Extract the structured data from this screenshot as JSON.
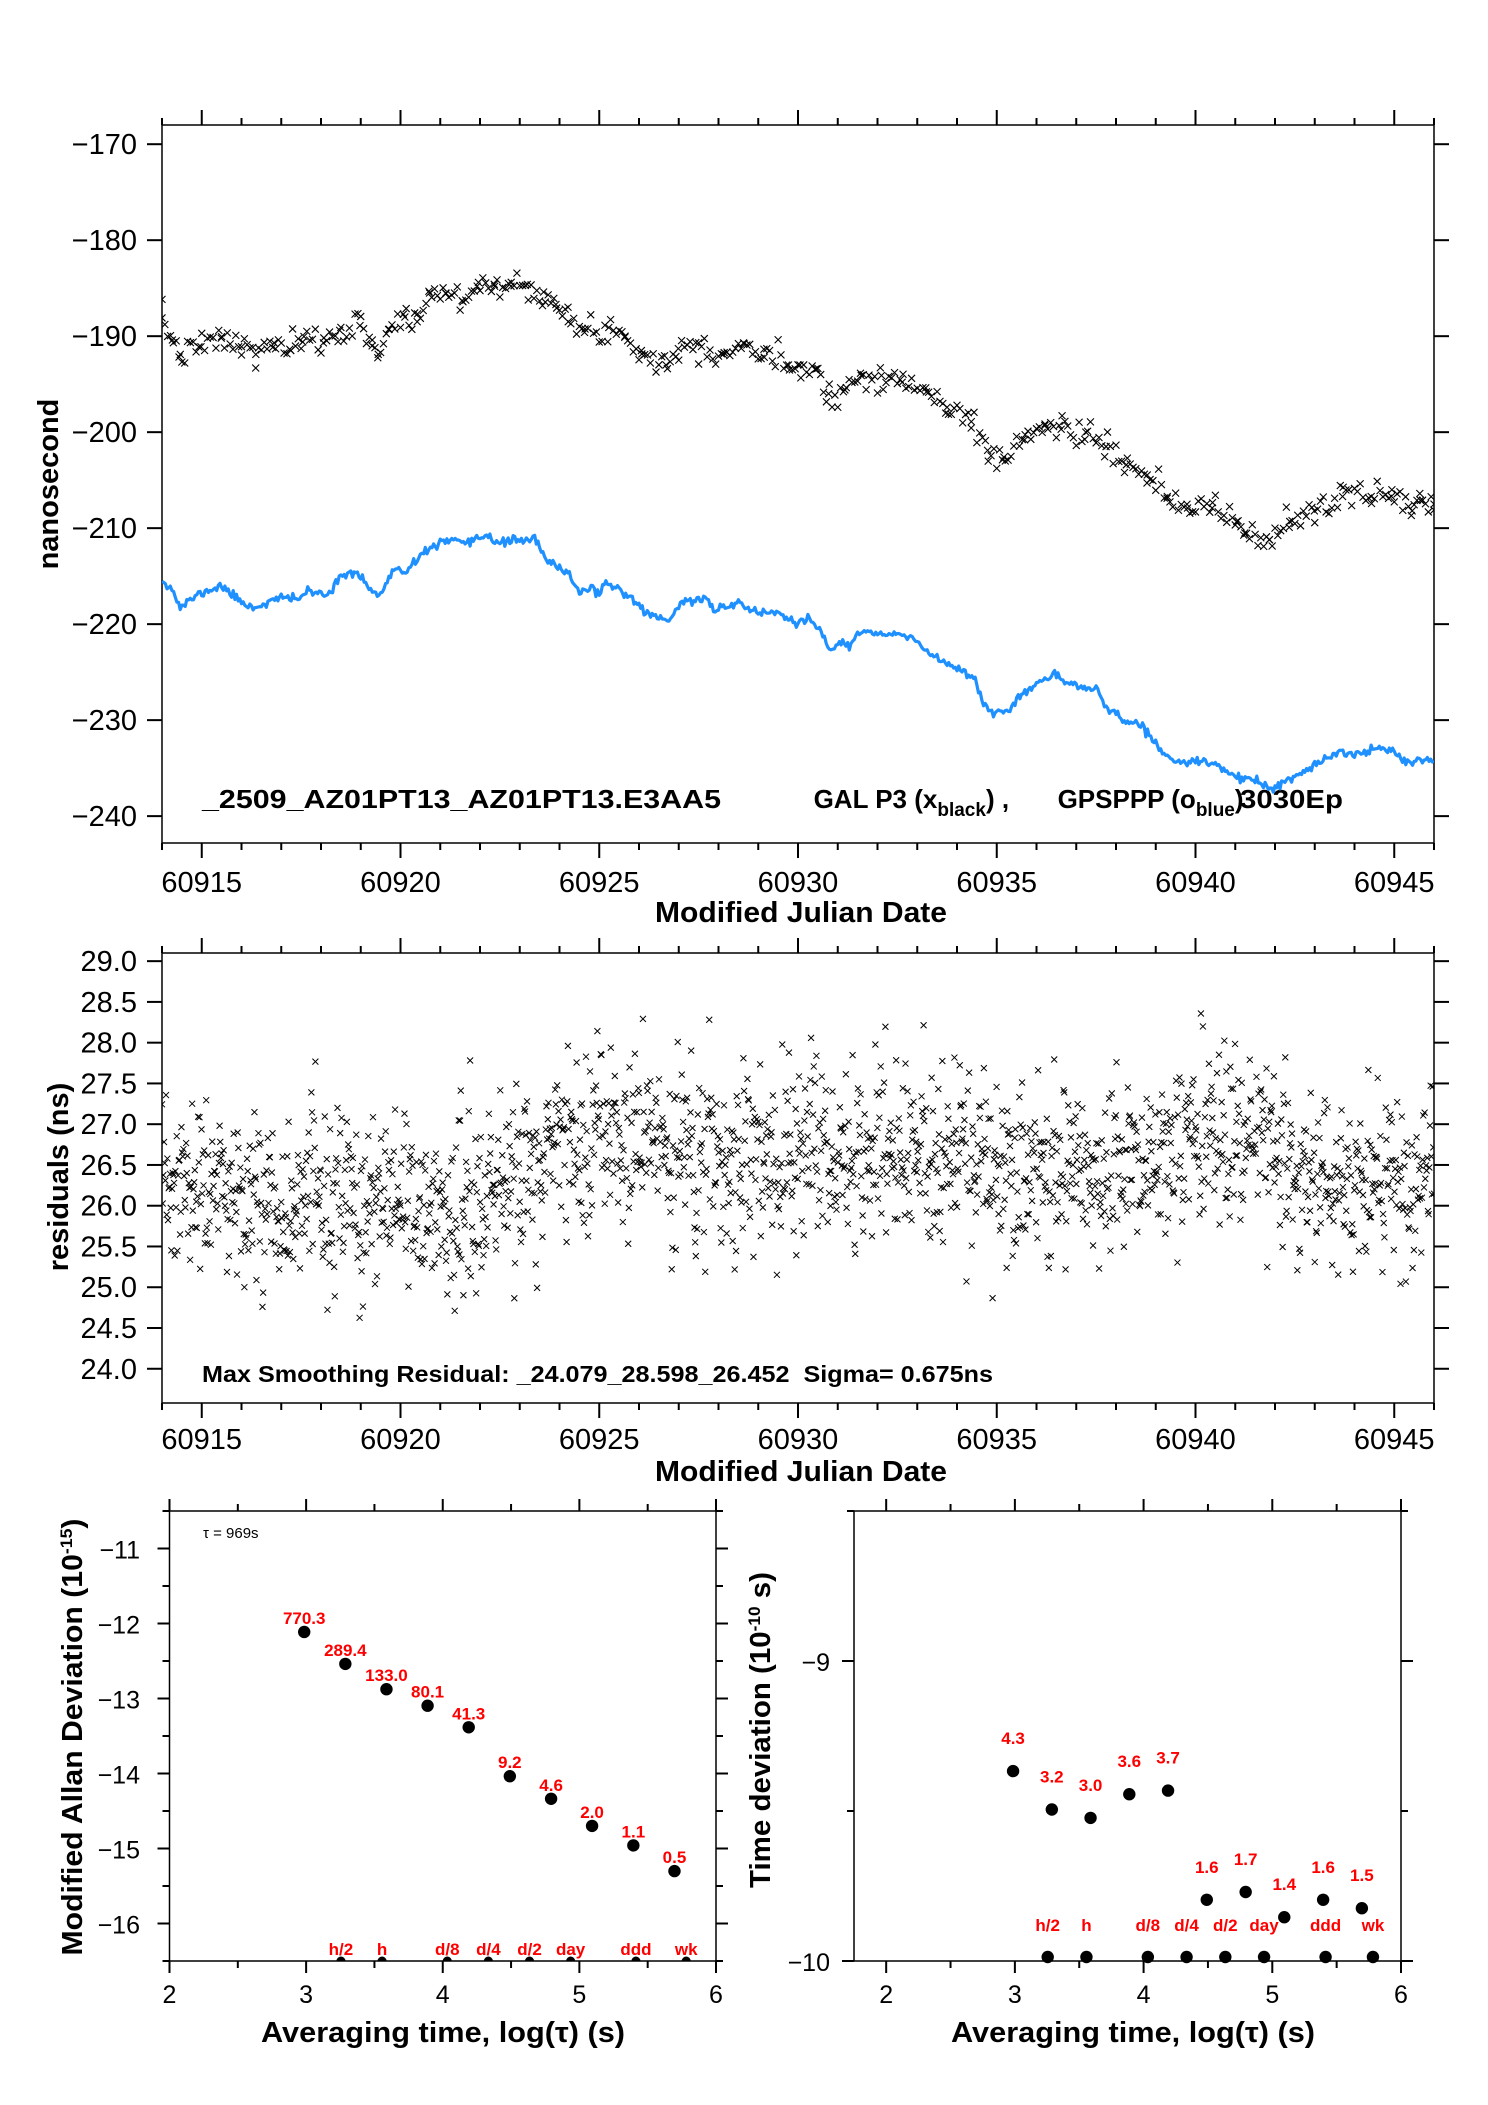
{
  "chart_data": [
    {
      "id": "clock-offset",
      "type": "scatter+line",
      "xlabel": "Modified Julian Date",
      "ylabel": "nanosecond",
      "xlim": [
        60914,
        60946
      ],
      "ylim": [
        -242.8,
        -168
      ],
      "grid": false,
      "xticks": [
        60915,
        60920,
        60925,
        60930,
        60935,
        60940,
        60945
      ],
      "xtick_labels": [
        "60915",
        "60920",
        "60925",
        "60930",
        "60935",
        "60940",
        "60945"
      ],
      "yticks": [
        -170,
        -180,
        -190,
        -200,
        -210,
        -220,
        -230,
        -240
      ],
      "ytick_labels": [
        "−170",
        "−180",
        "−190",
        "−200",
        "−210",
        "−220",
        "−230",
        "−240"
      ],
      "caption": {
        "prefix": "_2509_AZ01PT13_AZ01PT13.E3AA5",
        "series1_text": "GAL P3 (x",
        "series1_sub": "black",
        "series1_close": ") ,",
        "series2_text": "GPSPPP (o",
        "series2_sub": "blue",
        "series2_close": ")",
        "suffix": "3030Ep"
      },
      "series": [
        {
          "name": "GAL P3",
          "color": "#000000",
          "marker": "x",
          "points": [
            [
              60914.0,
              -188.1
            ],
            [
              60914.26,
              -190.4
            ],
            [
              60914.46,
              -191.9
            ],
            [
              60914.98,
              -191.1
            ],
            [
              60915.49,
              -190.2
            ],
            [
              60916.0,
              -191.1
            ],
            [
              60916.36,
              -191.9
            ],
            [
              60916.82,
              -190.7
            ],
            [
              60917.24,
              -191.5
            ],
            [
              60917.54,
              -190.6
            ],
            [
              60918.06,
              -190.7
            ],
            [
              60918.47,
              -189.4
            ],
            [
              60918.98,
              -188.9
            ],
            [
              60919.29,
              -190.4
            ],
            [
              60919.44,
              -191.9
            ],
            [
              60919.7,
              -189.3
            ],
            [
              60920.11,
              -188.0
            ],
            [
              60920.42,
              -188.5
            ],
            [
              60920.73,
              -185.5
            ],
            [
              60921.14,
              -185.5
            ],
            [
              60921.55,
              -186.3
            ],
            [
              60921.96,
              -184.4
            ],
            [
              60922.37,
              -184.8
            ],
            [
              60922.78,
              -184.8
            ],
            [
              60923.19,
              -184.6
            ],
            [
              60923.6,
              -185.4
            ],
            [
              60923.91,
              -186.7
            ],
            [
              60924.22,
              -188.5
            ],
            [
              60924.63,
              -189.6
            ],
            [
              60925.24,
              -189.1
            ],
            [
              60925.65,
              -190.0
            ],
            [
              60926.06,
              -191.5
            ],
            [
              60926.68,
              -193.0
            ],
            [
              60926.99,
              -191.3
            ],
            [
              60927.5,
              -190.7
            ],
            [
              60928.12,
              -191.9
            ],
            [
              60928.63,
              -190.7
            ],
            [
              60929.15,
              -192.2
            ],
            [
              60929.76,
              -193.0
            ],
            [
              60930.05,
              -193.0
            ],
            [
              60930.46,
              -193.4
            ],
            [
              60930.77,
              -196.0
            ],
            [
              60931.18,
              -195.6
            ],
            [
              60931.59,
              -194.1
            ],
            [
              60932.1,
              -194.1
            ],
            [
              60932.62,
              -194.8
            ],
            [
              60933.23,
              -195.8
            ],
            [
              60933.75,
              -197.4
            ],
            [
              60934.36,
              -198.9
            ],
            [
              60934.77,
              -201.9
            ],
            [
              60935.18,
              -202.6
            ],
            [
              60935.7,
              -200.8
            ],
            [
              60936.21,
              -199.3
            ],
            [
              60936.62,
              -199.7
            ],
            [
              60937.24,
              -200.0
            ],
            [
              60937.75,
              -201.5
            ],
            [
              60938.26,
              -203.4
            ],
            [
              60938.78,
              -205.3
            ],
            [
              60939.29,
              -206.7
            ],
            [
              60939.8,
              -207.9
            ],
            [
              60940.42,
              -207.9
            ],
            [
              60941.04,
              -209.3
            ],
            [
              60941.24,
              -210.5
            ],
            [
              60941.86,
              -211.2
            ],
            [
              60942.37,
              -209.3
            ],
            [
              60942.99,
              -208.2
            ],
            [
              60943.7,
              -206.7
            ],
            [
              60944.42,
              -206.7
            ],
            [
              60944.94,
              -206.0
            ],
            [
              60945.45,
              -208.2
            ],
            [
              60945.66,
              -207.1
            ],
            [
              60946.0,
              -207.5
            ]
          ]
        },
        {
          "name": "GPSPPP",
          "color": "#1e90ff",
          "marker": "o",
          "points": [
            [
              60914.0,
              -215.3
            ],
            [
              60914.26,
              -216.4
            ],
            [
              60914.46,
              -218.3
            ],
            [
              60914.87,
              -217.0
            ],
            [
              60915.49,
              -216.0
            ],
            [
              60916.0,
              -217.7
            ],
            [
              60916.31,
              -218.3
            ],
            [
              60916.93,
              -217.3
            ],
            [
              60917.44,
              -217.3
            ],
            [
              60917.65,
              -216.6
            ],
            [
              60918.16,
              -217.0
            ],
            [
              60918.47,
              -214.9
            ],
            [
              60918.98,
              -214.9
            ],
            [
              60919.44,
              -217.2
            ],
            [
              60919.9,
              -214.0
            ],
            [
              60920.11,
              -214.9
            ],
            [
              60920.62,
              -212.3
            ],
            [
              60921.24,
              -211.2
            ],
            [
              60921.65,
              -211.8
            ],
            [
              60922.16,
              -210.6
            ],
            [
              60922.47,
              -211.6
            ],
            [
              60922.88,
              -211.2
            ],
            [
              60923.4,
              -211.2
            ],
            [
              60923.7,
              -213.6
            ],
            [
              60924.22,
              -214.6
            ],
            [
              60924.53,
              -216.8
            ],
            [
              60924.83,
              -216.0
            ],
            [
              60924.99,
              -217.0
            ],
            [
              60925.24,
              -215.7
            ],
            [
              60925.65,
              -216.8
            ],
            [
              60926.27,
              -219.0
            ],
            [
              60926.73,
              -219.6
            ],
            [
              60927.09,
              -217.7
            ],
            [
              60927.71,
              -217.3
            ],
            [
              60927.91,
              -218.6
            ],
            [
              60928.53,
              -217.7
            ],
            [
              60929.04,
              -219.0
            ],
            [
              60929.35,
              -218.6
            ],
            [
              60929.97,
              -219.9
            ],
            [
              60930.25,
              -219.4
            ],
            [
              60930.56,
              -220.9
            ],
            [
              60930.82,
              -222.9
            ],
            [
              60931.08,
              -221.6
            ],
            [
              60931.28,
              -222.4
            ],
            [
              60931.59,
              -220.7
            ],
            [
              60932.1,
              -221.1
            ],
            [
              60932.62,
              -221.1
            ],
            [
              60933.03,
              -222.0
            ],
            [
              60933.54,
              -223.7
            ],
            [
              60934.05,
              -224.6
            ],
            [
              60934.46,
              -225.7
            ],
            [
              60934.67,
              -228.3
            ],
            [
              60934.98,
              -229.4
            ],
            [
              60935.39,
              -228.7
            ],
            [
              60935.8,
              -226.8
            ],
            [
              60936.31,
              -225.3
            ],
            [
              60936.72,
              -226.1
            ],
            [
              60937.24,
              -226.6
            ],
            [
              60937.54,
              -226.8
            ],
            [
              60937.75,
              -228.7
            ],
            [
              60938.26,
              -230.2
            ],
            [
              60938.67,
              -230.5
            ],
            [
              60939.08,
              -233.0
            ],
            [
              60939.6,
              -234.6
            ],
            [
              60940.0,
              -234.3
            ],
            [
              60940.52,
              -234.6
            ],
            [
              60941.14,
              -236.1
            ],
            [
              60941.55,
              -236.5
            ],
            [
              60941.96,
              -237.2
            ],
            [
              60942.37,
              -236.1
            ],
            [
              60942.78,
              -235.4
            ],
            [
              60943.19,
              -234.3
            ],
            [
              60943.6,
              -233.3
            ],
            [
              60944.22,
              -233.5
            ],
            [
              60944.63,
              -232.8
            ],
            [
              60945.04,
              -233.2
            ],
            [
              60945.35,
              -234.5
            ],
            [
              60945.66,
              -234.0
            ],
            [
              60946.0,
              -234.2
            ]
          ]
        }
      ]
    },
    {
      "id": "residuals",
      "type": "scatter",
      "xlabel": "Modified Julian Date",
      "ylabel": "residuals (ns)",
      "xlim": [
        60914,
        60946
      ],
      "ylim": [
        23.58,
        29.1
      ],
      "grid": false,
      "xticks": [
        60915,
        60920,
        60925,
        60930,
        60935,
        60940,
        60945
      ],
      "xtick_labels": [
        "60915",
        "60920",
        "60925",
        "60930",
        "60935",
        "60940",
        "60945"
      ],
      "yticks": [
        29.0,
        28.5,
        28.0,
        27.5,
        27.0,
        26.5,
        26.0,
        25.5,
        25.0,
        24.5,
        24.0
      ],
      "ytick_labels": [
        "29.0",
        "28.5",
        "28.0",
        "27.5",
        "27.0",
        "26.5",
        "26.0",
        "25.5",
        "25.0",
        "24.5",
        "24.0"
      ],
      "annotation": "Max Smoothing Residual: _24.079_28.598_26.452  Sigma= 0.675ns",
      "stats": {
        "min": 24.079,
        "max": 28.598,
        "mean": 26.452,
        "sigma": 0.675
      },
      "trend": [
        [
          60914,
          26.2
        ],
        [
          60917,
          26.1
        ],
        [
          60920,
          25.9
        ],
        [
          60922,
          26.0
        ],
        [
          60924,
          26.7
        ],
        [
          60926,
          26.8
        ],
        [
          60928,
          26.5
        ],
        [
          60930,
          26.6
        ],
        [
          60932,
          26.7
        ],
        [
          60934,
          26.6
        ],
        [
          60936,
          26.3
        ],
        [
          60938,
          26.4
        ],
        [
          60940,
          26.8
        ],
        [
          60942,
          26.6
        ],
        [
          60944,
          26.3
        ],
        [
          60946,
          26.4
        ]
      ],
      "marker": "x",
      "color": "#000000"
    },
    {
      "id": "mod-allan-deviation",
      "type": "scatter",
      "xlabel": "Averaging time, log(τ) (s)",
      "ylabel_main": "Modified Allan Deviation (10",
      "ylabel_sup": "-15",
      "ylabel_close": ")",
      "xlim": [
        2,
        6
      ],
      "ylim": [
        -16.5,
        -10.5
      ],
      "xticks": [
        2,
        3,
        4,
        5,
        6
      ],
      "xtick_labels": [
        "2",
        "3",
        "4",
        "5",
        "6"
      ],
      "yticks": [
        -11,
        -12,
        -13,
        -14,
        -15,
        -16
      ],
      "ytick_labels": [
        "−11",
        "−12",
        "−13",
        "−14",
        "−15",
        "−16"
      ],
      "tau_label": "τ = 969s",
      "points": [
        {
          "x": 2.986,
          "y": -12.113,
          "label": "770.3"
        },
        {
          "x": 3.287,
          "y": -12.539,
          "label": "289.4"
        },
        {
          "x": 3.588,
          "y": -12.876,
          "label": "133.0"
        },
        {
          "x": 3.889,
          "y": -13.096,
          "label": "80.1"
        },
        {
          "x": 4.19,
          "y": -13.384,
          "label": "41.3"
        },
        {
          "x": 4.491,
          "y": -14.036,
          "label": "9.2"
        },
        {
          "x": 4.793,
          "y": -14.337,
          "label": "4.6"
        },
        {
          "x": 5.093,
          "y": -14.699,
          "label": "2.0"
        },
        {
          "x": 5.395,
          "y": -14.959,
          "label": "1.1"
        },
        {
          "x": 5.696,
          "y": -15.301,
          "label": "0.5"
        }
      ],
      "time_markers": [
        {
          "x": 3.255,
          "label": "h/2"
        },
        {
          "x": 3.556,
          "label": "h"
        },
        {
          "x": 4.033,
          "label": "d/8"
        },
        {
          "x": 4.334,
          "label": "d/4"
        },
        {
          "x": 4.635,
          "label": "d/2"
        },
        {
          "x": 4.936,
          "label": "day"
        },
        {
          "x": 5.414,
          "label": "ddd"
        },
        {
          "x": 5.782,
          "label": "wk"
        }
      ],
      "point_color": "#000000",
      "label_color": "#ff0000"
    },
    {
      "id": "time-deviation",
      "type": "scatter",
      "xlabel": "Averaging time, log(τ) (s)",
      "ylabel_main": "Time deviation (10",
      "ylabel_sup": "-10",
      "ylabel_close": " s)",
      "xlim": [
        1.75,
        6.0
      ],
      "ylim": [
        -10,
        -8.5
      ],
      "xticks": [
        2,
        3,
        4,
        5,
        6
      ],
      "xtick_labels": [
        "2",
        "3",
        "4",
        "5",
        "6"
      ],
      "yticks": [
        -9,
        -10
      ],
      "ytick_labels": [
        "−9",
        "−10"
      ],
      "points": [
        {
          "x": 2.986,
          "y": -9.367,
          "label": "4.3"
        },
        {
          "x": 3.287,
          "y": -9.495,
          "label": "3.2"
        },
        {
          "x": 3.588,
          "y": -9.523,
          "label": "3.0"
        },
        {
          "x": 3.889,
          "y": -9.444,
          "label": "3.6"
        },
        {
          "x": 4.19,
          "y": -9.432,
          "label": "3.7"
        },
        {
          "x": 4.491,
          "y": -9.796,
          "label": "1.6"
        },
        {
          "x": 4.793,
          "y": -9.77,
          "label": "1.7"
        },
        {
          "x": 5.093,
          "y": -9.854,
          "label": "1.4"
        },
        {
          "x": 5.395,
          "y": -9.796,
          "label": "1.6"
        },
        {
          "x": 5.696,
          "y": -9.824,
          "label": "1.5"
        }
      ],
      "time_markers": [
        {
          "x": 3.255,
          "label": "h/2"
        },
        {
          "x": 3.556,
          "label": "h"
        },
        {
          "x": 4.033,
          "label": "d/8"
        },
        {
          "x": 4.334,
          "label": "d/4"
        },
        {
          "x": 4.635,
          "label": "d/2"
        },
        {
          "x": 4.936,
          "label": "day"
        },
        {
          "x": 5.414,
          "label": "ddd"
        },
        {
          "x": 5.782,
          "label": "wk"
        }
      ],
      "point_color": "#000000",
      "label_color": "#ff0000"
    }
  ]
}
